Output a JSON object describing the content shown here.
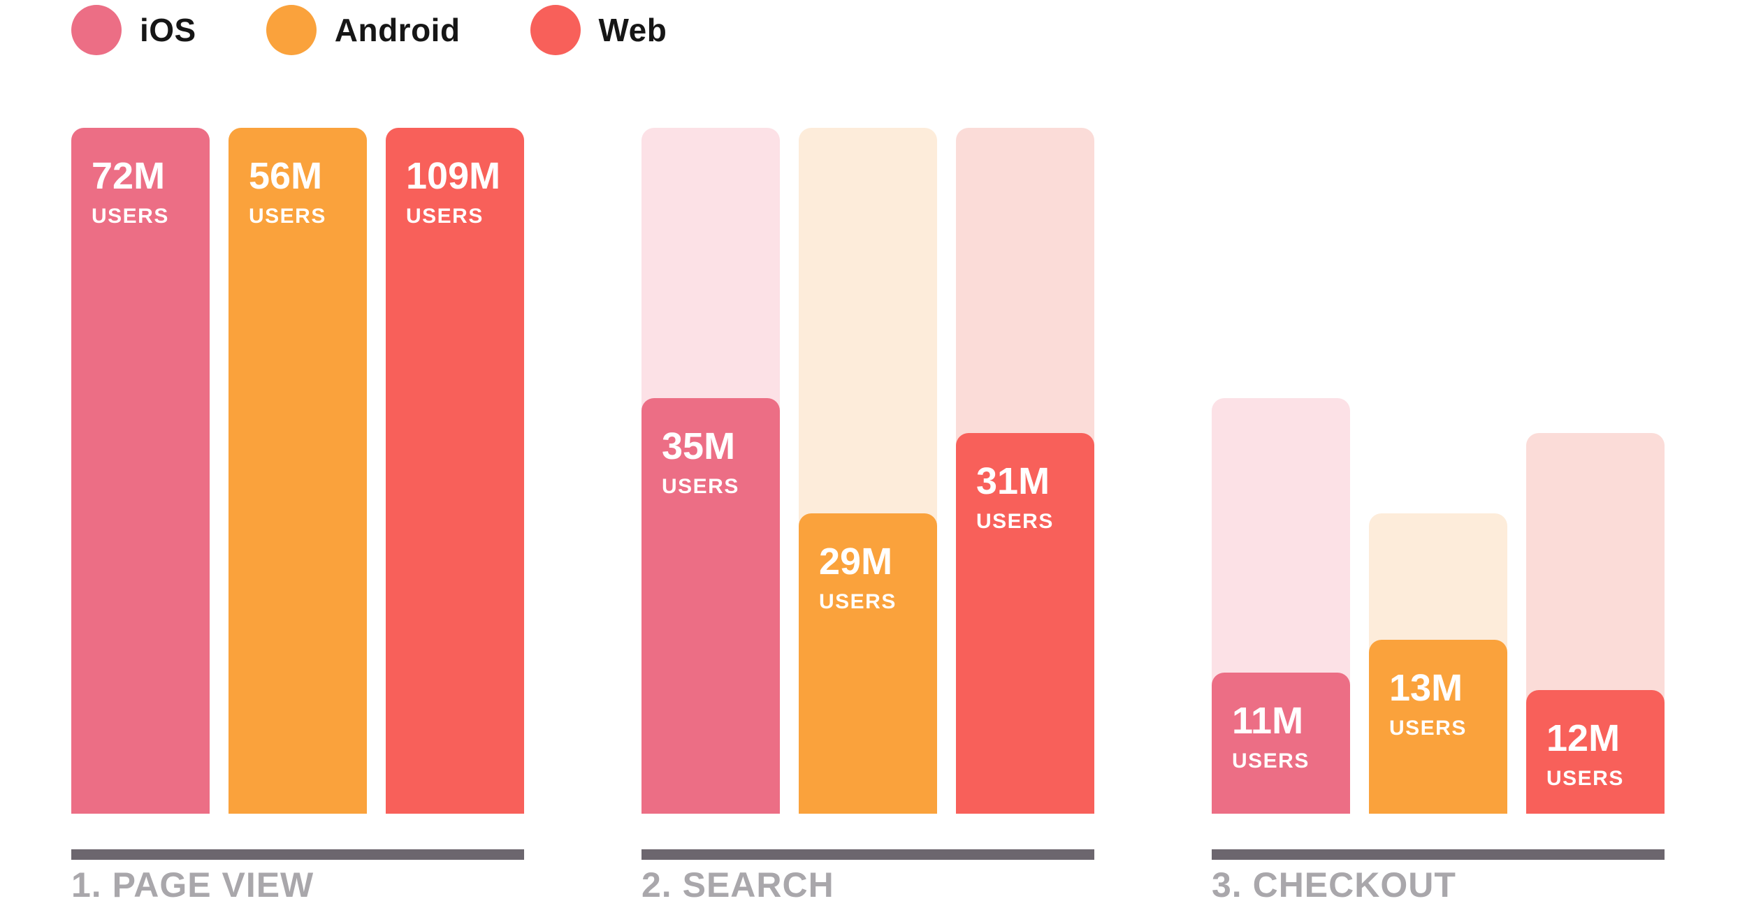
{
  "legend": {
    "items": [
      "iOS",
      "Android",
      "Web"
    ]
  },
  "chart_data": {
    "type": "bar",
    "subtype": "funnel",
    "title": "",
    "unit": "M USERS",
    "legend_position": "top-left",
    "grid": false,
    "platforms": [
      {
        "name": "iOS",
        "color": "#EC6E85",
        "color_light": "#FCE1E6"
      },
      {
        "name": "Android",
        "color": "#FAA23C",
        "color_light": "#FDECDA"
      },
      {
        "name": "Web",
        "color": "#F8605A",
        "color_light": "#FBDCD8"
      }
    ],
    "stages": [
      {
        "label": "1. PAGE VIEW",
        "bars": [
          {
            "platform": "iOS",
            "value": "72M",
            "value_m": 72,
            "unit_label": "USERS",
            "fill_frac": 1,
            "bg_frac": 1
          },
          {
            "platform": "Android",
            "value": "56M",
            "value_m": 56,
            "unit_label": "USERS",
            "fill_frac": 1,
            "bg_frac": 1
          },
          {
            "platform": "Web",
            "value": "109M",
            "value_m": 109,
            "unit_label": "USERS",
            "fill_frac": 1,
            "bg_frac": 1
          }
        ]
      },
      {
        "label": "2. SEARCH",
        "bars": [
          {
            "platform": "iOS",
            "value": "35M",
            "value_m": 35,
            "unit_label": "USERS",
            "fill_frac": 0.606,
            "bg_frac": 1
          },
          {
            "platform": "Android",
            "value": "29M",
            "value_m": 29,
            "unit_label": "USERS",
            "fill_frac": 0.438,
            "bg_frac": 1
          },
          {
            "platform": "Web",
            "value": "31M",
            "value_m": 31,
            "unit_label": "USERS",
            "fill_frac": 0.555,
            "bg_frac": 1
          }
        ]
      },
      {
        "label": "3. CHECKOUT",
        "bars": [
          {
            "platform": "iOS",
            "value": "11M",
            "value_m": 11,
            "unit_label": "USERS",
            "fill_frac": 0.206,
            "bg_frac": 0.606
          },
          {
            "platform": "Android",
            "value": "13M",
            "value_m": 13,
            "unit_label": "USERS",
            "fill_frac": 0.254,
            "bg_frac": 0.438
          },
          {
            "platform": "Web",
            "value": "12M",
            "value_m": 12,
            "unit_label": "USERS",
            "fill_frac": 0.18,
            "bg_frac": 0.555
          }
        ]
      }
    ],
    "colors": {
      "axis": "#6C666E",
      "stage_label": "#A9A7AB",
      "value_text": "#FFFFFF",
      "legend_text": "#161616",
      "background": "#FFFFFF"
    }
  }
}
